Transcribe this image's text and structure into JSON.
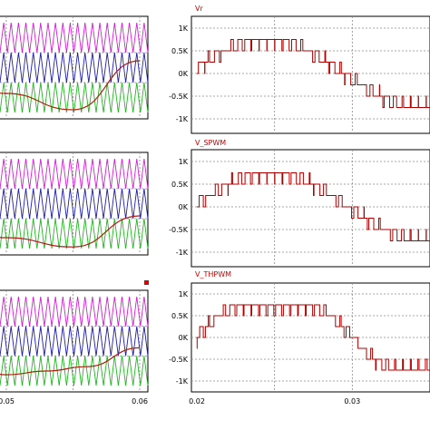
{
  "colors": {
    "carrier_magenta": "#d21ed2",
    "carrier_blue": "#1c1ca6",
    "carrier_green": "#21b621",
    "modulating_red": "#b01c10",
    "output_red": "#b00000",
    "title_red": "#cc0000",
    "marker_red": "#e00000"
  },
  "chart_data": [
    {
      "type": "line",
      "panel": "left-top",
      "title": "",
      "xlim": [
        0.04,
        0.06
      ],
      "tick_labels": [],
      "series": [
        {
          "color": "#d21ed2",
          "kind": "triangle-carrier",
          "periods": 20,
          "y_range": [
            0.45,
            1.0
          ]
        },
        {
          "color": "#1c1ca6",
          "kind": "triangle-carrier",
          "periods": 20,
          "y_range": [
            -0.1,
            0.45
          ]
        },
        {
          "color": "#21b621",
          "kind": "triangle-carrier",
          "periods": 20,
          "y_range": [
            -0.65,
            -0.1
          ]
        },
        {
          "color": "#b01c10",
          "kind": "modulating-sine",
          "y_at_x": [
            [
              0.04,
              0.55
            ],
            [
              0.045,
              0.1
            ],
            [
              0.05,
              -0.3
            ],
            [
              0.055,
              -0.6
            ],
            [
              0.06,
              0.3
            ]
          ]
        }
      ]
    },
    {
      "type": "line",
      "panel": "left-middle",
      "title": "",
      "xlim": [
        0.04,
        0.06
      ],
      "tick_labels": [],
      "series": [
        {
          "color": "#d21ed2",
          "kind": "triangle-carrier",
          "periods": 20,
          "y_range": [
            0.45,
            1.0
          ]
        },
        {
          "color": "#1c1ca6",
          "kind": "triangle-carrier",
          "periods": 20,
          "y_range": [
            -0.1,
            0.45
          ]
        },
        {
          "color": "#21b621",
          "kind": "triangle-carrier",
          "periods": 20,
          "y_range": [
            -0.65,
            -0.1
          ]
        },
        {
          "color": "#b01c10",
          "kind": "modulating-sine",
          "y_at_x": [
            [
              0.04,
              0.25
            ],
            [
              0.045,
              -0.1
            ],
            [
              0.05,
              -0.45
            ],
            [
              0.055,
              -0.62
            ],
            [
              0.06,
              -0.05
            ]
          ]
        }
      ]
    },
    {
      "type": "line",
      "panel": "left-bottom",
      "title": "",
      "xlim": [
        0.04,
        0.06
      ],
      "x_tick_labels": [
        "0.05",
        "0.06"
      ],
      "x_tick_values": [
        0.05,
        0.06
      ],
      "series": [
        {
          "color": "#d21ed2",
          "kind": "triangle-carrier",
          "periods": 20,
          "y_range": [
            0.45,
            1.0
          ]
        },
        {
          "color": "#1c1ca6",
          "kind": "triangle-carrier",
          "periods": 20,
          "y_range": [
            -0.1,
            0.45
          ]
        },
        {
          "color": "#21b621",
          "kind": "triangle-carrier",
          "periods": 20,
          "y_range": [
            -0.65,
            -0.1
          ]
        },
        {
          "color": "#b01c10",
          "kind": "third-harmonic-injected",
          "y_at_x": [
            [
              0.04,
              0.3
            ],
            [
              0.045,
              -0.25
            ],
            [
              0.048,
              -0.38
            ],
            [
              0.05,
              -0.45
            ],
            [
              0.053,
              -0.38
            ],
            [
              0.056,
              -0.3
            ],
            [
              0.06,
              0.05
            ]
          ]
        }
      ]
    },
    {
      "type": "line",
      "panel": "right-top",
      "title": "Vr",
      "xlim": [
        0.02,
        0.035
      ],
      "ylim": [
        -1000,
        1000
      ],
      "y_ticks": [
        1000,
        500,
        0,
        -500,
        -1000
      ],
      "y_tick_labels": [
        "1K",
        "0.5K",
        "0K",
        "-0.5K",
        "-1K"
      ],
      "x_grid": [
        0.025,
        0.03
      ],
      "levels": [
        -750,
        -500,
        -250,
        0,
        250,
        500,
        750
      ],
      "series": [
        {
          "name": "Vr",
          "color": "#b00000",
          "kind": "multilevel-staircase",
          "peak": 750,
          "period": 0.02,
          "phase_deg": 10
        }
      ]
    },
    {
      "type": "line",
      "panel": "right-middle",
      "title": "V_SPWM",
      "xlim": [
        0.02,
        0.035
      ],
      "ylim": [
        -1000,
        1000
      ],
      "y_ticks": [
        1000,
        500,
        0,
        -500,
        -1000
      ],
      "y_tick_labels": [
        "1K",
        "0.5K",
        "0K",
        "-0.5K",
        "-1K"
      ],
      "x_grid": [
        0.025,
        0.03
      ],
      "levels": [
        -750,
        -500,
        -250,
        0,
        250,
        500,
        750
      ],
      "series": [
        {
          "name": "V_SPWM",
          "color": "#b00000",
          "kind": "multilevel-staircase",
          "peak": 750,
          "period": 0.02,
          "phase_deg": 5
        }
      ]
    },
    {
      "type": "line",
      "panel": "right-bottom",
      "title": "V_THPWM",
      "xlim": [
        0.02,
        0.035
      ],
      "ylim": [
        -1000,
        1000
      ],
      "y_ticks": [
        1000,
        500,
        0,
        -500,
        -1000
      ],
      "y_tick_labels": [
        "1K",
        "0.5K",
        "0K",
        "-0.5K",
        "-1K"
      ],
      "x_tick_labels": [
        "0.02",
        "0.03"
      ],
      "x_tick_values": [
        0.02,
        0.03
      ],
      "x_grid": [
        0.025,
        0.03
      ],
      "levels": [
        -750,
        -500,
        -250,
        0,
        250,
        500,
        750
      ],
      "series": [
        {
          "name": "V_THPWM",
          "color": "#b00000",
          "kind": "multilevel-staircase",
          "peak": 750,
          "period": 0.02,
          "phase_deg": 0,
          "third_harmonic": 0.17
        }
      ]
    }
  ]
}
